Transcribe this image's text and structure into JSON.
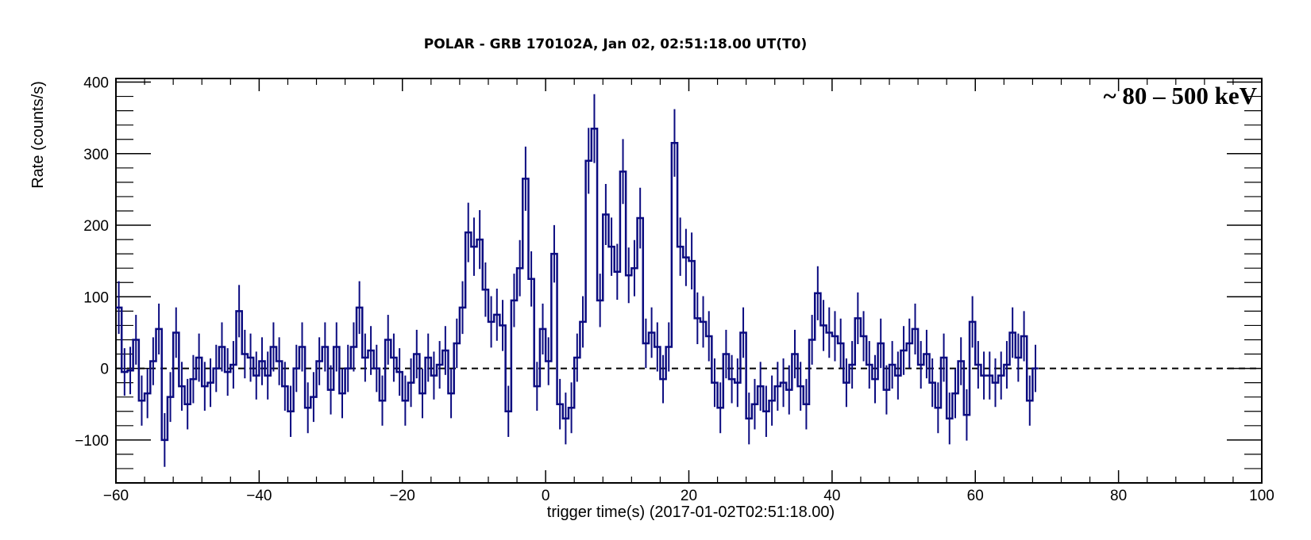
{
  "chart_data": {
    "type": "line",
    "title": "POLAR - GRB 170102A, Jan 02, 02:51:18.00  UT(T0)",
    "xlabel": "trigger time(s) (2017-01-02T02:51:18.00)",
    "ylabel": "Rate (counts/s)",
    "annotation": "~ 80 – 500 keV",
    "xlim": [
      -60,
      100
    ],
    "ylim": [
      -160,
      405
    ],
    "xticks": [
      -60,
      -40,
      -20,
      0,
      20,
      40,
      60,
      80,
      100
    ],
    "xtick_labels": [
      "−60",
      "−40",
      "−20",
      "0",
      "20",
      "40",
      "60",
      "80",
      "100"
    ],
    "yticks": [
      -100,
      0,
      100,
      200,
      300,
      400
    ],
    "ytick_labels": [
      "−100",
      "0",
      "100",
      "200",
      "300",
      "400"
    ],
    "reference_line": 0,
    "grid": false,
    "line_color": "#0b0b80",
    "bin_width": 0.8,
    "series": [
      {
        "x_start": -60,
        "values": [
          85,
          -5,
          -3,
          40,
          -45,
          -35,
          10,
          55,
          -100,
          -40,
          50,
          -25,
          -50,
          -15,
          15,
          -25,
          -20,
          0,
          30,
          -5,
          5,
          80,
          20,
          15,
          -10,
          10,
          -10,
          30,
          10,
          -25,
          -60,
          0,
          30,
          -55,
          -40,
          10,
          30,
          -30,
          30,
          -35,
          0,
          30,
          85,
          15,
          25,
          0,
          -45,
          40,
          15,
          -5,
          -45,
          -20,
          20,
          -35,
          15,
          -10,
          5,
          25,
          -35,
          35,
          85,
          190,
          170,
          180,
          110,
          65,
          75,
          60,
          -60,
          95,
          140,
          265,
          125,
          -25,
          55,
          10,
          160,
          -50,
          -70,
          -55,
          15,
          65,
          290,
          335,
          95,
          215,
          170,
          135,
          275,
          130,
          140,
          210,
          35,
          50,
          30,
          -15,
          30,
          315,
          170,
          155,
          150,
          70,
          65,
          45,
          -20,
          -55,
          20,
          -15,
          -20,
          50,
          -70,
          -50,
          -25,
          -60,
          -45,
          -25,
          -20,
          -30,
          20,
          -25,
          -50,
          40,
          105,
          60,
          50,
          45,
          35,
          -20,
          5,
          70,
          45,
          5,
          -15,
          35,
          -30,
          5,
          -10,
          25,
          35,
          55,
          5,
          20,
          -20,
          -55,
          15,
          -70,
          -35,
          10,
          -65,
          65,
          5,
          -10,
          -10,
          -20,
          -10,
          5,
          50,
          15,
          45,
          -45,
          0
        ]
      }
    ]
  }
}
